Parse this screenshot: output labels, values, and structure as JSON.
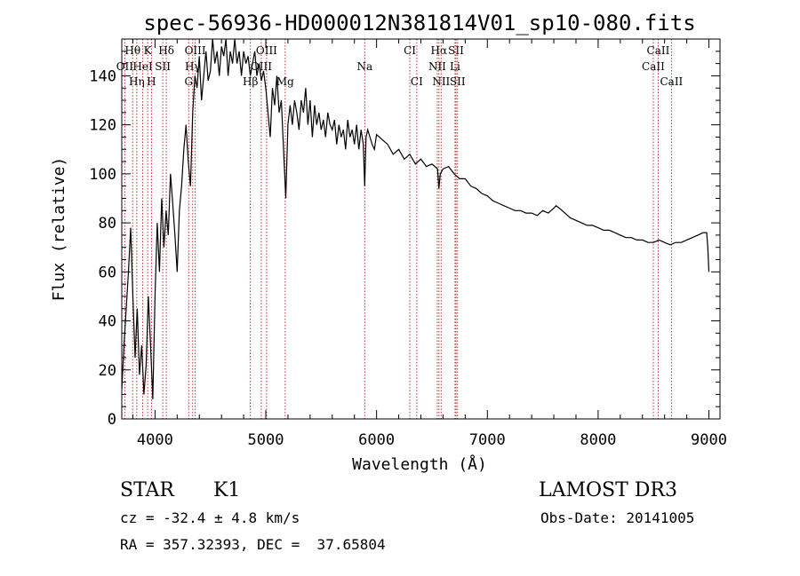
{
  "chart_data": {
    "type": "line",
    "title": "spec-56936-HD000012N381814V01_sp10-080.fits",
    "xlabel": "Wavelength (Å)",
    "ylabel": "Flux (relative)",
    "xlim": [
      3700,
      9100
    ],
    "ylim": [
      0,
      155
    ],
    "x_ticks": [
      4000,
      5000,
      6000,
      7000,
      8000,
      9000
    ],
    "y_ticks": [
      0,
      20,
      40,
      60,
      80,
      100,
      120,
      140
    ],
    "line_markers": [
      {
        "label": "Hθ",
        "wavelength": 3798,
        "row": 0
      },
      {
        "label": "K",
        "wavelength": 3934,
        "row": 0
      },
      {
        "label": "Hδ",
        "wavelength": 4102,
        "row": 0
      },
      {
        "label": "OIII",
        "wavelength": 4363,
        "row": 0
      },
      {
        "label": "OIII",
        "wavelength": 5007,
        "row": 0
      },
      {
        "label": "CI",
        "wavelength": 6300,
        "row": 0
      },
      {
        "label": "Hα",
        "wavelength": 6563,
        "row": 0
      },
      {
        "label": "SII",
        "wavelength": 6717,
        "row": 0
      },
      {
        "label": "CaII",
        "wavelength": 8542,
        "row": 0
      },
      {
        "label": "OII",
        "wavelength": 3727,
        "row": 1
      },
      {
        "label": "HeI",
        "wavelength": 3889,
        "row": 1
      },
      {
        "label": "SII",
        "wavelength": 4070,
        "row": 1
      },
      {
        "label": "Hγ",
        "wavelength": 4340,
        "row": 1
      },
      {
        "label": "OIII",
        "wavelength": 4959,
        "row": 1
      },
      {
        "label": "Na",
        "wavelength": 5893,
        "row": 1
      },
      {
        "label": "NII",
        "wavelength": 6548,
        "row": 1
      },
      {
        "label": "Li",
        "wavelength": 6708,
        "row": 1
      },
      {
        "label": "CaII",
        "wavelength": 8498,
        "row": 1
      },
      {
        "label": "Hη",
        "wavelength": 3835,
        "row": 2
      },
      {
        "label": "H",
        "wavelength": 3968,
        "row": 2
      },
      {
        "label": "G",
        "wavelength": 4304,
        "row": 2
      },
      {
        "label": "Hβ",
        "wavelength": 4861,
        "row": 2
      },
      {
        "label": "Mg",
        "wavelength": 5175,
        "row": 2
      },
      {
        "label": "CI",
        "wavelength": 6363,
        "row": 2
      },
      {
        "label": "NII",
        "wavelength": 6583,
        "row": 2
      },
      {
        "label": "SII",
        "wavelength": 6731,
        "row": 2
      },
      {
        "label": "CaII",
        "wavelength": 8662,
        "row": 2
      }
    ],
    "series": [
      {
        "name": "spectrum",
        "x": [
          3700,
          3720,
          3740,
          3760,
          3780,
          3800,
          3820,
          3840,
          3860,
          3880,
          3900,
          3920,
          3940,
          3960,
          3980,
          4000,
          4020,
          4040,
          4060,
          4080,
          4100,
          4120,
          4140,
          4160,
          4180,
          4200,
          4220,
          4240,
          4260,
          4280,
          4300,
          4320,
          4340,
          4360,
          4380,
          4400,
          4420,
          4440,
          4460,
          4480,
          4500,
          4520,
          4540,
          4560,
          4580,
          4600,
          4620,
          4640,
          4660,
          4680,
          4700,
          4720,
          4740,
          4760,
          4780,
          4800,
          4820,
          4840,
          4860,
          4880,
          4900,
          4920,
          4940,
          4960,
          4980,
          5000,
          5020,
          5040,
          5060,
          5080,
          5100,
          5120,
          5140,
          5160,
          5180,
          5200,
          5220,
          5240,
          5260,
          5280,
          5300,
          5320,
          5340,
          5360,
          5380,
          5400,
          5420,
          5440,
          5460,
          5480,
          5500,
          5520,
          5540,
          5560,
          5580,
          5600,
          5620,
          5640,
          5660,
          5680,
          5700,
          5720,
          5740,
          5760,
          5780,
          5800,
          5820,
          5840,
          5860,
          5880,
          5893,
          5905,
          5920,
          5940,
          5960,
          5980,
          6000,
          6050,
          6100,
          6150,
          6200,
          6250,
          6300,
          6350,
          6400,
          6450,
          6500,
          6550,
          6563,
          6575,
          6600,
          6650,
          6700,
          6750,
          6800,
          6850,
          6900,
          6950,
          7000,
          7050,
          7100,
          7150,
          7200,
          7250,
          7300,
          7350,
          7400,
          7450,
          7500,
          7550,
          7600,
          7620,
          7650,
          7700,
          7750,
          7800,
          7850,
          7900,
          7950,
          8000,
          8050,
          8100,
          8150,
          8200,
          8250,
          8300,
          8350,
          8400,
          8450,
          8500,
          8550,
          8600,
          8650,
          8700,
          8750,
          8800,
          8850,
          8900,
          8950,
          8980,
          8990,
          9000
        ],
        "y": [
          12,
          30,
          45,
          60,
          78,
          50,
          25,
          45,
          18,
          30,
          10,
          22,
          50,
          30,
          8,
          50,
          80,
          60,
          90,
          70,
          85,
          75,
          100,
          88,
          75,
          60,
          85,
          95,
          110,
          120,
          105,
          95,
          125,
          140,
          135,
          148,
          130,
          140,
          150,
          138,
          142,
          155,
          145,
          150,
          140,
          152,
          148,
          155,
          140,
          150,
          145,
          155,
          145,
          150,
          140,
          150,
          145,
          148,
          140,
          145,
          150,
          140,
          145,
          138,
          142,
          135,
          125,
          115,
          135,
          128,
          140,
          125,
          130,
          110,
          90,
          120,
          128,
          120,
          130,
          125,
          118,
          130,
          125,
          135,
          120,
          130,
          115,
          128,
          120,
          125,
          118,
          122,
          115,
          125,
          120,
          118,
          122,
          112,
          120,
          115,
          118,
          110,
          122,
          115,
          118,
          112,
          120,
          110,
          118,
          112,
          95,
          115,
          118,
          115,
          112,
          110,
          116,
          114,
          112,
          108,
          110,
          106,
          108,
          104,
          106,
          103,
          104,
          102,
          94,
          100,
          102,
          103,
          100,
          98,
          98,
          95,
          94,
          92,
          91,
          89,
          88,
          87,
          86,
          85,
          85,
          84,
          84,
          83,
          85,
          84,
          86,
          87,
          86,
          84,
          82,
          81,
          80,
          79,
          79,
          78,
          77,
          77,
          76,
          75,
          74,
          74,
          73,
          73,
          72,
          72,
          73,
          72,
          71,
          72,
          72,
          73,
          74,
          75,
          76,
          76,
          70,
          60
        ]
      }
    ]
  },
  "info": {
    "object_class": "STAR",
    "subclass": "K1",
    "cz": "cz = -32.4 ± 4.8 km/s",
    "coords": "RA = 357.32393, DEC =  37.65804",
    "survey": "LAMOST DR3",
    "obs_date": "Obs-Date: 20141005"
  }
}
